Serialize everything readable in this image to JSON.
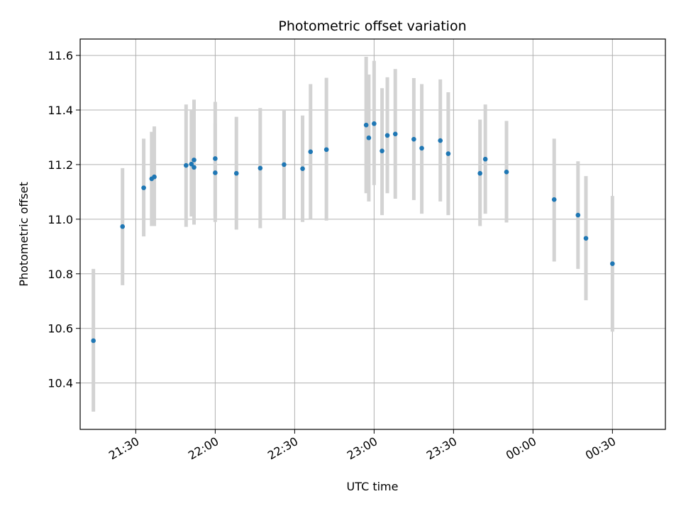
{
  "chart_data": {
    "type": "scatter",
    "title": "Photometric offset variation",
    "xlabel": "UTC time",
    "ylabel": "Photometric offset",
    "xlim": [
      "21:09",
      "00:50"
    ],
    "ylim": [
      10.23,
      11.66
    ],
    "x_ticks": [
      "21:30",
      "22:00",
      "22:30",
      "23:00",
      "23:30",
      "00:00",
      "00:30"
    ],
    "y_ticks": [
      "10.4",
      "10.6",
      "10.8",
      "11.0",
      "11.2",
      "11.4",
      "11.6"
    ],
    "grid": true,
    "marker_color": "#1f77b4",
    "errorbar_color": "#d3d3d3",
    "points": [
      {
        "t": "21:14",
        "y": 10.555,
        "lo": 10.295,
        "hi": 10.818
      },
      {
        "t": "21:25",
        "y": 10.973,
        "lo": 10.758,
        "hi": 11.187
      },
      {
        "t": "21:33",
        "y": 11.115,
        "lo": 10.937,
        "hi": 11.295
      },
      {
        "t": "21:36",
        "y": 11.148,
        "lo": 10.975,
        "hi": 11.32
      },
      {
        "t": "21:37",
        "y": 11.155,
        "lo": 10.975,
        "hi": 11.34
      },
      {
        "t": "21:49",
        "y": 11.197,
        "lo": 10.972,
        "hi": 11.42
      },
      {
        "t": "21:51",
        "y": 11.202,
        "lo": 11.01,
        "hi": 11.4
      },
      {
        "t": "21:52",
        "y": 11.19,
        "lo": 10.98,
        "hi": 11.395
      },
      {
        "t": "21:52",
        "y": 11.217,
        "lo": 10.995,
        "hi": 11.438
      },
      {
        "t": "22:00",
        "y": 11.17,
        "lo": 10.99,
        "hi": 11.35
      },
      {
        "t": "22:00",
        "y": 11.222,
        "lo": 11.01,
        "hi": 11.43
      },
      {
        "t": "22:08",
        "y": 11.168,
        "lo": 10.962,
        "hi": 11.375
      },
      {
        "t": "22:17",
        "y": 11.187,
        "lo": 10.967,
        "hi": 11.407
      },
      {
        "t": "22:26",
        "y": 11.2,
        "lo": 11.0,
        "hi": 11.4
      },
      {
        "t": "22:33",
        "y": 11.185,
        "lo": 10.99,
        "hi": 11.38
      },
      {
        "t": "22:36",
        "y": 11.247,
        "lo": 11.0,
        "hi": 11.495
      },
      {
        "t": "22:42",
        "y": 11.255,
        "lo": 10.995,
        "hi": 11.518
      },
      {
        "t": "22:57",
        "y": 11.345,
        "lo": 11.095,
        "hi": 11.595
      },
      {
        "t": "22:58",
        "y": 11.298,
        "lo": 11.065,
        "hi": 11.53
      },
      {
        "t": "23:00",
        "y": 11.35,
        "lo": 11.125,
        "hi": 11.58
      },
      {
        "t": "23:03",
        "y": 11.25,
        "lo": 11.015,
        "hi": 11.48
      },
      {
        "t": "23:05",
        "y": 11.307,
        "lo": 11.095,
        "hi": 11.52
      },
      {
        "t": "23:08",
        "y": 11.312,
        "lo": 11.075,
        "hi": 11.55
      },
      {
        "t": "23:15",
        "y": 11.293,
        "lo": 11.07,
        "hi": 11.517
      },
      {
        "t": "23:18",
        "y": 11.26,
        "lo": 11.02,
        "hi": 11.495
      },
      {
        "t": "23:25",
        "y": 11.288,
        "lo": 11.065,
        "hi": 11.512
      },
      {
        "t": "23:28",
        "y": 11.24,
        "lo": 11.015,
        "hi": 11.465
      },
      {
        "t": "23:40",
        "y": 11.168,
        "lo": 10.975,
        "hi": 11.365
      },
      {
        "t": "23:42",
        "y": 11.22,
        "lo": 11.02,
        "hi": 11.42
      },
      {
        "t": "23:50",
        "y": 11.173,
        "lo": 10.988,
        "hi": 11.36
      },
      {
        "t": "00:08",
        "y": 11.072,
        "lo": 10.845,
        "hi": 11.295
      },
      {
        "t": "00:17",
        "y": 11.015,
        "lo": 10.818,
        "hi": 11.212
      },
      {
        "t": "00:20",
        "y": 10.93,
        "lo": 10.703,
        "hi": 11.158
      },
      {
        "t": "00:30",
        "y": 10.837,
        "lo": 10.588,
        "hi": 11.085
      }
    ]
  }
}
